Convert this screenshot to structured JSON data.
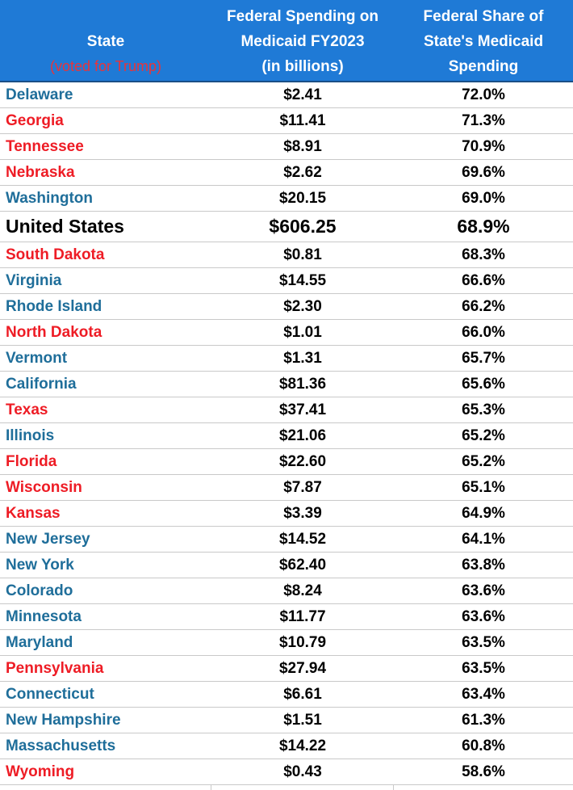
{
  "header": {
    "state_label": "State",
    "state_sub": "(voted for Trump)",
    "spending_label_lines": [
      "Federal Spending on",
      "Medicaid FY2023",
      "(in billions)"
    ],
    "share_label_lines": [
      "Federal Share of",
      "State's Medicaid",
      "Spending"
    ]
  },
  "colors": {
    "header_bg": "#1f7ad6",
    "democrat_state": "#1f6e9a",
    "trump_state": "#ee1c25",
    "header_text": "#ffffff"
  },
  "rows": [
    {
      "state": "Delaware",
      "spending": "$2.41",
      "share": "72.0%",
      "voted_trump": false
    },
    {
      "state": "Georgia",
      "spending": "$11.41",
      "share": "71.3%",
      "voted_trump": true
    },
    {
      "state": "Tennessee",
      "spending": "$8.91",
      "share": "70.9%",
      "voted_trump": true
    },
    {
      "state": "Nebraska",
      "spending": "$2.62",
      "share": "69.6%",
      "voted_trump": true
    },
    {
      "state": "Washington",
      "spending": "$20.15",
      "share": "69.0%",
      "voted_trump": false
    },
    {
      "state": "United States",
      "spending": "$606.25",
      "share": "68.9%",
      "voted_trump": false,
      "total": true
    },
    {
      "state": "South Dakota",
      "spending": "$0.81",
      "share": "68.3%",
      "voted_trump": true
    },
    {
      "state": "Virginia",
      "spending": "$14.55",
      "share": "66.6%",
      "voted_trump": false
    },
    {
      "state": "Rhode Island",
      "spending": "$2.30",
      "share": "66.2%",
      "voted_trump": false
    },
    {
      "state": "North Dakota",
      "spending": "$1.01",
      "share": "66.0%",
      "voted_trump": true
    },
    {
      "state": "Vermont",
      "spending": "$1.31",
      "share": "65.7%",
      "voted_trump": false
    },
    {
      "state": "California",
      "spending": "$81.36",
      "share": "65.6%",
      "voted_trump": false
    },
    {
      "state": "Texas",
      "spending": "$37.41",
      "share": "65.3%",
      "voted_trump": true
    },
    {
      "state": "Illinois",
      "spending": "$21.06",
      "share": "65.2%",
      "voted_trump": false
    },
    {
      "state": "Florida",
      "spending": "$22.60",
      "share": "65.2%",
      "voted_trump": true
    },
    {
      "state": "Wisconsin",
      "spending": "$7.87",
      "share": "65.1%",
      "voted_trump": true
    },
    {
      "state": "Kansas",
      "spending": "$3.39",
      "share": "64.9%",
      "voted_trump": true
    },
    {
      "state": "New Jersey",
      "spending": "$14.52",
      "share": "64.1%",
      "voted_trump": false
    },
    {
      "state": "New York",
      "spending": "$62.40",
      "share": "63.8%",
      "voted_trump": false
    },
    {
      "state": "Colorado",
      "spending": "$8.24",
      "share": "63.6%",
      "voted_trump": false
    },
    {
      "state": "Minnesota",
      "spending": "$11.77",
      "share": "63.6%",
      "voted_trump": false
    },
    {
      "state": "Maryland",
      "spending": "$10.79",
      "share": "63.5%",
      "voted_trump": false
    },
    {
      "state": "Pennsylvania",
      "spending": "$27.94",
      "share": "63.5%",
      "voted_trump": true
    },
    {
      "state": "Connecticut",
      "spending": "$6.61",
      "share": "63.4%",
      "voted_trump": false
    },
    {
      "state": "New Hampshire",
      "spending": "$1.51",
      "share": "61.3%",
      "voted_trump": false
    },
    {
      "state": "Massachusetts",
      "spending": "$14.22",
      "share": "60.8%",
      "voted_trump": false
    },
    {
      "state": "Wyoming",
      "spending": "$0.43",
      "share": "58.6%",
      "voted_trump": true
    }
  ]
}
